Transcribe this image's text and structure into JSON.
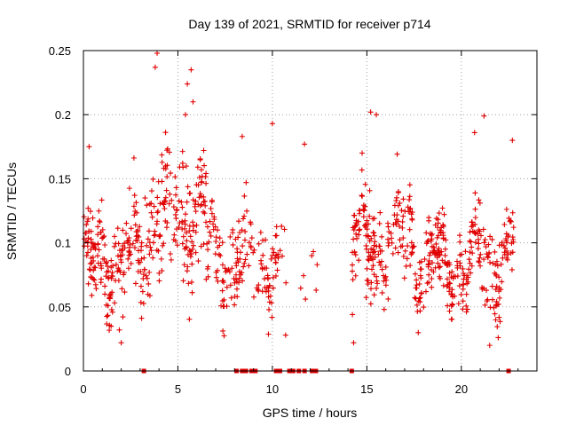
{
  "chart_data": {
    "type": "scatter",
    "title": "Day 139 of 2021, SRMTID for receiver p714",
    "xlabel": "GPS time / hours",
    "ylabel": "SRMTID / TECUs",
    "xlim": [
      0,
      24
    ],
    "ylim": [
      0,
      0.25
    ],
    "xticks": [
      0,
      5,
      10,
      15,
      20
    ],
    "yticks": [
      0,
      0.05,
      0.1,
      0.15,
      0.2,
      0.25
    ],
    "ytick_labels": [
      "0",
      "0.05",
      "0.1",
      "0.15",
      "0.2",
      "0.25"
    ],
    "marker": "+",
    "color": "#e00000",
    "grid": true,
    "zero_points_x": [
      3.2,
      8.1,
      8.4,
      8.6,
      8.9,
      9.1,
      10.2,
      10.4,
      10.9,
      11.1,
      11.4,
      11.7,
      12.1,
      12.3,
      14.2,
      22.5
    ],
    "segments": [
      {
        "start": 0.0,
        "end": 3.2,
        "base": 0.085,
        "trend": 0.01,
        "spread": 0.035,
        "density": 60
      },
      {
        "start": 3.2,
        "end": 6.5,
        "base": 0.12,
        "trend": 0.02,
        "spread": 0.05,
        "density": 55
      },
      {
        "start": 6.5,
        "end": 8.2,
        "base": 0.09,
        "trend": -0.01,
        "spread": 0.035,
        "density": 45
      },
      {
        "start": 8.2,
        "end": 10.3,
        "base": 0.085,
        "trend": 0.005,
        "spread": 0.035,
        "density": 40
      },
      {
        "start": 10.3,
        "end": 12.5,
        "base": 0.085,
        "trend": 0.0,
        "spread": 0.03,
        "density": 6
      },
      {
        "start": 14.2,
        "end": 17.5,
        "base": 0.1,
        "trend": 0.01,
        "spread": 0.035,
        "density": 55
      },
      {
        "start": 17.5,
        "end": 22.8,
        "base": 0.085,
        "trend": 0.005,
        "spread": 0.03,
        "density": 55
      }
    ],
    "highlights": [
      {
        "x": 3.9,
        "y": 0.248
      },
      {
        "x": 3.8,
        "y": 0.237
      },
      {
        "x": 5.7,
        "y": 0.235
      },
      {
        "x": 5.5,
        "y": 0.224
      },
      {
        "x": 5.8,
        "y": 0.21
      },
      {
        "x": 5.4,
        "y": 0.2
      },
      {
        "x": 15.2,
        "y": 0.202
      },
      {
        "x": 15.5,
        "y": 0.2
      },
      {
        "x": 21.2,
        "y": 0.199
      },
      {
        "x": 10.0,
        "y": 0.193
      },
      {
        "x": 22.7,
        "y": 0.18
      },
      {
        "x": 11.7,
        "y": 0.177
      },
      {
        "x": 20.7,
        "y": 0.186
      },
      {
        "x": 8.4,
        "y": 0.183
      },
      {
        "x": 0.3,
        "y": 0.175
      },
      {
        "x": 2.0,
        "y": 0.022
      },
      {
        "x": 14.3,
        "y": 0.022
      },
      {
        "x": 21.5,
        "y": 0.02
      },
      {
        "x": 10.7,
        "y": 0.028
      },
      {
        "x": 1.9,
        "y": 0.032
      }
    ]
  }
}
